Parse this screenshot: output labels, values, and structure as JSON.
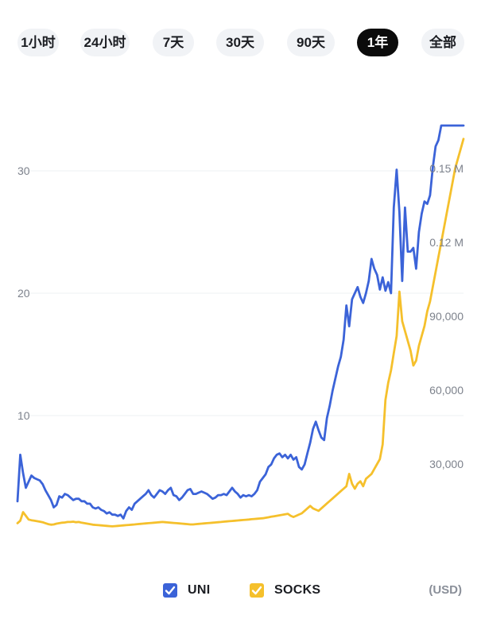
{
  "time_range_tabs": [
    {
      "label": "1小时",
      "active": false
    },
    {
      "label": "24小时",
      "active": false
    },
    {
      "label": "7天",
      "active": false
    },
    {
      "label": "30天",
      "active": false
    },
    {
      "label": "90天",
      "active": false
    },
    {
      "label": "1年",
      "active": true
    },
    {
      "label": "全部",
      "active": false
    }
  ],
  "legend": {
    "uni_label": "UNI",
    "socks_label": "SOCKS",
    "unit_label": "(USD)"
  },
  "colors": {
    "uni": "#3b63d8",
    "socks": "#f5c02c",
    "active_tab": "#0b0b0b",
    "tab": "#f1f3f6"
  },
  "chart_data": {
    "type": "line",
    "title": "",
    "xlabel": "",
    "left_axis": {
      "ticks": [
        10,
        20,
        30
      ],
      "tick_labels": [
        "10",
        "20",
        "30"
      ],
      "range": [
        0,
        35
      ]
    },
    "right_axis": {
      "ticks": [
        30000,
        60000,
        90000,
        120000,
        150000
      ],
      "tick_labels": [
        "30,000",
        "60,000",
        "90,000",
        "0.12 M",
        "0.15 M"
      ],
      "range": [
        0,
        160000
      ]
    },
    "grid": "horizontal",
    "legend_position": "bottom",
    "x_count": 161,
    "series": [
      {
        "name": "UNI",
        "axis": "left",
        "values": [
          3.0,
          6.8,
          5.3,
          4.1,
          4.6,
          5.1,
          4.9,
          4.8,
          4.7,
          4.4,
          3.9,
          3.5,
          3.1,
          2.5,
          2.7,
          3.4,
          3.3,
          3.6,
          3.5,
          3.3,
          3.1,
          3.2,
          3.2,
          3.0,
          3.0,
          2.8,
          2.8,
          2.5,
          2.4,
          2.5,
          2.3,
          2.2,
          2.0,
          2.1,
          1.9,
          1.9,
          1.8,
          1.9,
          1.6,
          2.2,
          2.5,
          2.3,
          2.8,
          3.0,
          3.2,
          3.4,
          3.6,
          3.9,
          3.5,
          3.3,
          3.6,
          3.9,
          3.8,
          3.6,
          3.9,
          4.1,
          3.5,
          3.4,
          3.1,
          3.3,
          3.6,
          3.9,
          4.0,
          3.6,
          3.6,
          3.7,
          3.8,
          3.7,
          3.6,
          3.4,
          3.2,
          3.3,
          3.5,
          3.5,
          3.6,
          3.5,
          3.8,
          4.1,
          3.8,
          3.6,
          3.3,
          3.5,
          3.4,
          3.5,
          3.4,
          3.6,
          3.9,
          4.6,
          4.9,
          5.2,
          5.8,
          6.0,
          6.5,
          6.8,
          6.9,
          6.6,
          6.8,
          6.5,
          6.8,
          6.4,
          6.6,
          5.8,
          5.6,
          6.0,
          6.9,
          7.8,
          8.9,
          9.5,
          8.8,
          8.2,
          8.0,
          9.8,
          10.8,
          12.0,
          13.0,
          14.0,
          14.8,
          16.2,
          19.0,
          17.3,
          19.5,
          20.0,
          20.5,
          19.7,
          19.2,
          20.0,
          21.0,
          22.8,
          22.0,
          21.5,
          20.3,
          21.3,
          20.2,
          20.9,
          20.0,
          27.0,
          30.1,
          26.6,
          21.0,
          27.0,
          23.4,
          23.4,
          23.7,
          22.0,
          25.0,
          26.5,
          27.5,
          27.3,
          28.0,
          30.3,
          32.0,
          32.5,
          34.0,
          35.0,
          35.0,
          35.0,
          35.0,
          35.0,
          35.0,
          35.0,
          35.0
        ],
        "color": "#3b63d8"
      },
      {
        "name": "SOCKS",
        "axis": "right",
        "values": [
          6000,
          7000,
          10500,
          9000,
          7500,
          7200,
          7000,
          6800,
          6600,
          6400,
          6000,
          5600,
          5400,
          5500,
          5800,
          6000,
          6200,
          6300,
          6500,
          6500,
          6600,
          6400,
          6500,
          6200,
          6000,
          5800,
          5600,
          5400,
          5300,
          5200,
          5100,
          5000,
          4900,
          4800,
          4700,
          4800,
          4900,
          5000,
          5100,
          5200,
          5300,
          5400,
          5500,
          5600,
          5700,
          5800,
          5900,
          6000,
          6100,
          6200,
          6300,
          6400,
          6500,
          6400,
          6300,
          6200,
          6100,
          6000,
          5900,
          5800,
          5700,
          5600,
          5500,
          5500,
          5600,
          5700,
          5800,
          5900,
          6000,
          6100,
          6200,
          6300,
          6400,
          6500,
          6600,
          6700,
          6800,
          6900,
          7000,
          7100,
          7200,
          7300,
          7400,
          7500,
          7600,
          7700,
          7800,
          7900,
          8000,
          8200,
          8400,
          8600,
          8800,
          9000,
          9200,
          9400,
          9600,
          9800,
          9000,
          8500,
          9000,
          9500,
          10000,
          11000,
          12000,
          13000,
          12000,
          11500,
          11000,
          12000,
          13000,
          14000,
          15000,
          16000,
          17000,
          18000,
          19000,
          20000,
          21000,
          26000,
          22000,
          20000,
          22000,
          23000,
          21000,
          24000,
          25000,
          26000,
          28000,
          30000,
          32000,
          38000,
          56000,
          63000,
          68000,
          75000,
          82000,
          100000,
          88000,
          84000,
          80000,
          76000,
          70000,
          72000,
          78000,
          82000,
          86000,
          92000,
          96000,
          102000,
          108000,
          114000,
          120000,
          126000,
          132000,
          138000,
          144000,
          150000,
          154000,
          158000,
          162000
        ],
        "color": "#f5c02c"
      }
    ]
  }
}
